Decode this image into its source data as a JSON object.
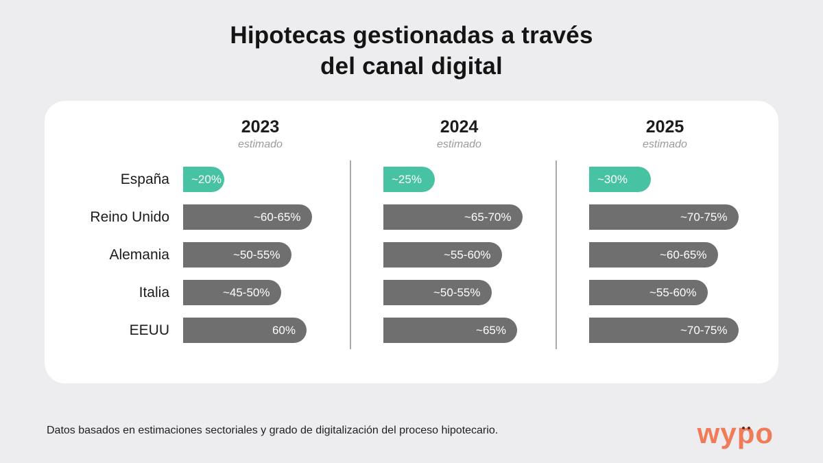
{
  "title": {
    "line1": "Hipotecas gestionadas a través",
    "line2": "del canal digital"
  },
  "footer_note": "Datos basados en estimaciones sectoriales y grado de digitalización del proceso hipotecario.",
  "logo_text": "wypo",
  "colors": {
    "highlight_bar": "#47c2a2",
    "default_bar": "#6f6f6f",
    "background": "#edecee",
    "card": "#ffffff",
    "logo": "#ef7b59"
  },
  "chart_data": {
    "type": "bar",
    "title": "Hipotecas gestionadas a través del canal digital",
    "categories": [
      "España",
      "Reino Unido",
      "Alemania",
      "Italia",
      "EEUU"
    ],
    "series": [
      {
        "name": "2023",
        "subtitle": "estimado",
        "labels": [
          "~20%",
          "~60-65%",
          "~50-55%",
          "~45-50%",
          "60%"
        ],
        "values": [
          20,
          62.5,
          52.5,
          47.5,
          60
        ]
      },
      {
        "name": "2024",
        "subtitle": "estimado",
        "labels": [
          "~25%",
          "~65-70%",
          "~55-60%",
          "~50-55%",
          "~65%"
        ],
        "values": [
          25,
          67.5,
          57.5,
          52.5,
          65
        ]
      },
      {
        "name": "2025",
        "subtitle": "estimado",
        "labels": [
          "~30%",
          "~70-75%",
          "~60-65%",
          "~55-60%",
          "~70-75%"
        ],
        "values": [
          30,
          72.5,
          62.5,
          57.5,
          72.5
        ]
      }
    ],
    "highlight_category": "España",
    "unit": "%",
    "axis_max": 75,
    "legend": false,
    "note": "Datos basados en estimaciones sectoriales y grado de digitalización del proceso hipotecario."
  }
}
